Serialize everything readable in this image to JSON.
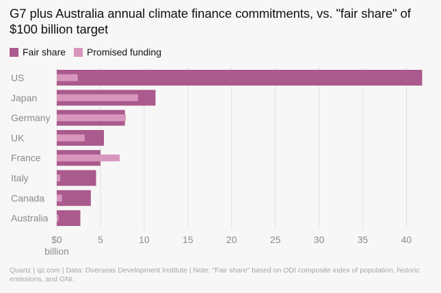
{
  "chart_data": {
    "type": "bar",
    "title": "G7 plus Australia annual climate finance commitments, vs. \"fair share\" of $100 billion target",
    "categories": [
      "US",
      "Japan",
      "Germany",
      "UK",
      "France",
      "Italy",
      "Canada",
      "Australia"
    ],
    "series": [
      {
        "name": "Fair share",
        "color": "#aa5a8c",
        "values": [
          41.8,
          11.3,
          7.8,
          5.4,
          5.0,
          4.5,
          3.9,
          2.7
        ]
      },
      {
        "name": "Promised funding",
        "color": "#d896bd",
        "values": [
          2.4,
          9.3,
          7.9,
          3.2,
          7.2,
          0.4,
          0.6,
          0.2
        ]
      }
    ],
    "xlim": [
      0,
      42
    ],
    "xticks": [
      0,
      5,
      10,
      15,
      20,
      25,
      30,
      35,
      40
    ],
    "xtick_labels": [
      "$0",
      "5",
      "10",
      "15",
      "20",
      "25",
      "30",
      "35",
      "40"
    ],
    "xtick_sublabel": "billion",
    "orientation": "horizontal",
    "grid": true,
    "legend_position": "top-left"
  },
  "footer": {
    "source": "Quartz | qz.com | Data: Overseas Development Institute | Note: \"Fair share\" based on ODI composite index of population, historic emissions, and GNI."
  }
}
